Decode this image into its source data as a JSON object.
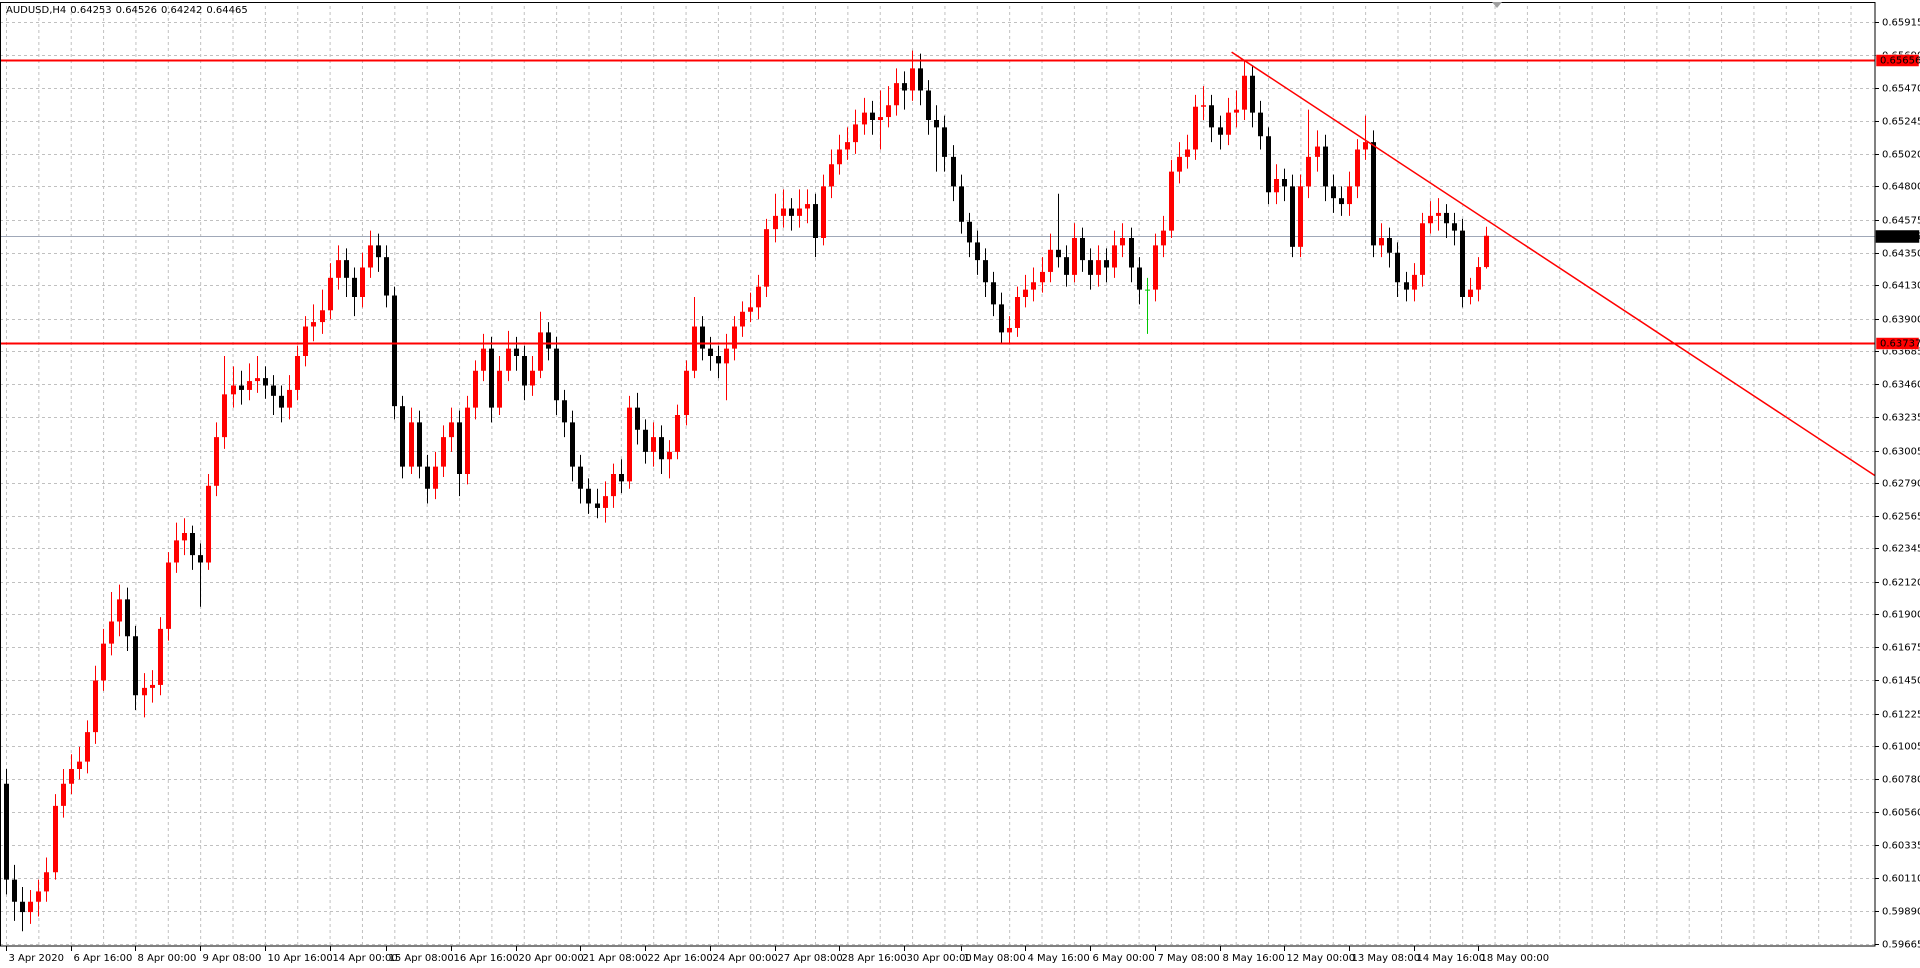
{
  "chart_data": {
    "type": "candlestick",
    "symbol": "AUDUSD,H4",
    "up_color": "#ff0000",
    "down_color": "#000000",
    "doji_color": "#00c800",
    "grid": true,
    "ylim": [
      0.5965,
      0.6605
    ],
    "yticks": [
      0.65915,
      {
        "value": 0.6569,
        "label": "0.65690"
      },
      {
        "value": 0.6547,
        "label": "0.65470"
      },
      0.65245,
      {
        "value": 0.6502,
        "label": "0.65020"
      },
      {
        "value": 0.648,
        "label": "0.64800"
      },
      0.64575,
      {
        "value": 0.6435,
        "label": "0.64350"
      },
      {
        "value": 0.6413,
        "label": "0.64130"
      },
      {
        "value": 0.639,
        "label": "0.63900"
      },
      0.63685,
      {
        "value": 0.6346,
        "label": "0.63460"
      },
      0.63235,
      0.63005,
      {
        "value": 0.6279,
        "label": "0.62790"
      },
      0.62565,
      0.62345,
      {
        "value": 0.6212,
        "label": "0.62120"
      },
      {
        "value": 0.619,
        "label": "0.61900"
      },
      0.61675,
      {
        "value": 0.6145,
        "label": "0.61450"
      },
      0.61225,
      0.61005,
      {
        "value": 0.6078,
        "label": "0.60780"
      },
      {
        "value": 0.6056,
        "label": "0.60560"
      },
      0.60335,
      {
        "value": 0.6011,
        "label": "0.60110"
      },
      {
        "value": 0.5989,
        "label": "0.59890"
      },
      0.59665
    ],
    "levels": [
      {
        "value": 0.65656,
        "color": "#ff0000"
      },
      {
        "value": 0.63737,
        "color": "#ff0000"
      }
    ],
    "current_price_color": "#a0a8b8",
    "trendline": {
      "x": [
        151.5,
        231
      ],
      "y": [
        0.6571,
        0.6284
      ],
      "color": "#ff0000"
    },
    "categories": [
      "3 Apr 2020",
      null,
      null,
      null,
      null,
      null,
      null,
      null,
      "6 Apr 16:00",
      null,
      null,
      null,
      null,
      null,
      null,
      null,
      "8 Apr 00:00",
      null,
      null,
      null,
      null,
      null,
      null,
      null,
      "9 Apr 08:00",
      null,
      null,
      null,
      null,
      null,
      null,
      null,
      "10 Apr 16:00",
      null,
      null,
      null,
      null,
      null,
      null,
      null,
      "14 Apr 00:00",
      null,
      null,
      null,
      null,
      null,
      null,
      "15 Apr 08:00",
      null,
      null,
      null,
      null,
      null,
      null,
      null,
      "16 Apr 16:00",
      null,
      null,
      null,
      null,
      null,
      null,
      null,
      "20 Apr 00:00",
      null,
      null,
      null,
      null,
      null,
      null,
      null,
      "21 Apr 08:00",
      null,
      null,
      null,
      null,
      null,
      null,
      null,
      "22 Apr 16:00",
      null,
      null,
      null,
      null,
      null,
      null,
      null,
      "24 Apr 00:00",
      null,
      null,
      null,
      null,
      null,
      null,
      null,
      "27 Apr 08:00",
      null,
      null,
      null,
      null,
      null,
      null,
      null,
      "28 Apr 16:00",
      null,
      null,
      null,
      null,
      null,
      null,
      null,
      "30 Apr 00:00",
      null,
      null,
      null,
      null,
      null,
      null,
      "1 May 08:00",
      null,
      null,
      null,
      null,
      null,
      null,
      null,
      "4 May 16:00",
      null,
      null,
      null,
      null,
      null,
      null,
      null,
      "6 May 00:00",
      null,
      null,
      null,
      null,
      null,
      null,
      null,
      "7 May 08:00",
      null,
      null,
      null,
      null,
      null,
      null,
      null,
      "8 May 16:00",
      null,
      null,
      null,
      null,
      null,
      null,
      null,
      "12 May 00:00",
      null,
      null,
      null,
      null,
      null,
      null,
      null,
      "13 May 08:00",
      null,
      null,
      null,
      null,
      null,
      null,
      null,
      "14 May 16:00",
      null,
      null,
      null,
      null,
      null,
      null,
      null,
      "18 May 00:00",
      null
    ],
    "open": [
      0.6075,
      0.601,
      0.5995,
      0.5988,
      0.5995,
      0.6002,
      0.6015,
      0.606,
      0.6075,
      0.6085,
      0.609,
      0.611,
      0.6145,
      0.617,
      0.6185,
      0.62,
      0.6175,
      0.6135,
      0.614,
      0.6142,
      0.618,
      0.6225,
      0.624,
      0.6245,
      0.623,
      0.6225,
      0.6277,
      0.631,
      0.6339,
      0.6345,
      0.6342,
      0.6348,
      0.635,
      0.6345,
      0.6338,
      0.633,
      0.6342,
      0.6365,
      0.6385,
      0.6388,
      0.6396,
      0.6418,
      0.643,
      0.6418,
      0.6405,
      0.6425,
      0.644,
      0.6432,
      0.6406,
      0.6331,
      0.629,
      0.632,
      0.629,
      0.6275,
      0.629,
      0.631,
      0.632,
      0.6285,
      0.633,
      0.6355,
      0.637,
      0.633,
      0.6355,
      0.637,
      0.6365,
      0.6345,
      0.6355,
      0.6381,
      0.637,
      0.6335,
      0.632,
      0.629,
      0.6275,
      0.6265,
      0.6262,
      0.627,
      0.6285,
      0.628,
      0.633,
      0.6315,
      0.63,
      0.631,
      0.6295,
      0.63,
      0.6325,
      0.6355,
      0.6385,
      0.637,
      0.6365,
      0.636,
      0.637,
      0.6385,
      0.6395,
      0.6398,
      0.6412,
      0.6451,
      0.646,
      0.6465,
      0.646,
      0.6465,
      0.6468,
      0.6445,
      0.648,
      0.6495,
      0.6505,
      0.651,
      0.6522,
      0.653,
      0.6525,
      0.6527,
      0.6535,
      0.655,
      0.6545,
      0.656,
      0.6545,
      0.6525,
      0.652,
      0.65,
      0.648,
      0.6456,
      0.6442,
      0.643,
      0.6415,
      0.64,
      0.6381,
      0.6384,
      0.6405,
      0.641,
      0.6415,
      0.6422,
      0.6437,
      0.6432,
      0.642,
      0.6445,
      0.643,
      0.642,
      0.643,
      0.6425,
      0.644,
      0.6445,
      0.6425,
      0.641,
      0.641,
      0.644,
      0.645,
      0.649,
      0.65,
      0.6505,
      0.6534,
      0.6535,
      0.652,
      0.6515,
      0.653,
      0.6532,
      0.6555,
      0.653,
      0.6514,
      0.6476,
      0.6485,
      0.648,
      0.6439,
      0.648,
      0.65,
      0.6507,
      0.648,
      0.6472,
      0.6468,
      0.648,
      0.6505,
      0.651,
      0.644,
      0.6445,
      0.6435,
      0.6415,
      0.641,
      0.642,
      0.6455,
      0.646,
      0.6462,
      0.6455,
      0.645,
      0.6405,
      0.641,
      0.64253
    ],
    "high": [
      0.6085,
      0.602,
      0.6005,
      0.6003,
      0.601,
      0.6025,
      0.6068,
      0.6085,
      0.6095,
      0.61,
      0.6118,
      0.6155,
      0.618,
      0.6205,
      0.621,
      0.6208,
      0.6182,
      0.615,
      0.6152,
      0.6188,
      0.6232,
      0.6252,
      0.6255,
      0.625,
      0.6238,
      0.6285,
      0.632,
      0.6365,
      0.6358,
      0.6355,
      0.636,
      0.6365,
      0.6358,
      0.6352,
      0.6345,
      0.6352,
      0.6372,
      0.6392,
      0.64,
      0.641,
      0.6428,
      0.644,
      0.6438,
      0.6425,
      0.6435,
      0.645,
      0.6448,
      0.644,
      0.6412,
      0.6338,
      0.633,
      0.6328,
      0.6298,
      0.63,
      0.6318,
      0.633,
      0.6328,
      0.6338,
      0.6362,
      0.638,
      0.6378,
      0.6365,
      0.6382,
      0.6378,
      0.6372,
      0.6365,
      0.6395,
      0.6388,
      0.6378,
      0.6342,
      0.6328,
      0.6298,
      0.6282,
      0.6275,
      0.628,
      0.6292,
      0.6295,
      0.6338,
      0.634,
      0.6322,
      0.632,
      0.6318,
      0.6308,
      0.6332,
      0.6362,
      0.6405,
      0.6392,
      0.6378,
      0.6372,
      0.638,
      0.6392,
      0.6402,
      0.6408,
      0.642,
      0.6458,
      0.6475,
      0.6478,
      0.6472,
      0.6478,
      0.6478,
      0.6475,
      0.6488,
      0.6505,
      0.6515,
      0.652,
      0.6532,
      0.654,
      0.6538,
      0.6545,
      0.6548,
      0.656,
      0.6558,
      0.6572,
      0.657,
      0.6552,
      0.6535,
      0.6528,
      0.6508,
      0.6488,
      0.6462,
      0.645,
      0.6438,
      0.6422,
      0.6408,
      0.6392,
      0.6412,
      0.642,
      0.6425,
      0.6432,
      0.6448,
      0.6475,
      0.644,
      0.6455,
      0.6452,
      0.6438,
      0.644,
      0.6438,
      0.645,
      0.6455,
      0.6452,
      0.6432,
      0.6418,
      0.6448,
      0.646,
      0.6498,
      0.651,
      0.6515,
      0.6542,
      0.6548,
      0.6542,
      0.6528,
      0.654,
      0.6545,
      0.6565,
      0.6562,
      0.6538,
      0.652,
      0.6495,
      0.6492,
      0.6488,
      0.6488,
      0.6532,
      0.6518,
      0.6515,
      0.6488,
      0.648,
      0.649,
      0.6512,
      0.6528,
      0.6518,
      0.6455,
      0.6452,
      0.6442,
      0.6422,
      0.6428,
      0.6462,
      0.647,
      0.6472,
      0.6468,
      0.6462,
      0.6458,
      0.6418,
      0.6432,
      0.64526
    ],
    "low": [
      0.6,
      0.5982,
      0.5975,
      0.598,
      0.5985,
      0.5995,
      0.601,
      0.6052,
      0.6068,
      0.6078,
      0.6082,
      0.6102,
      0.6138,
      0.6162,
      0.6175,
      0.6165,
      0.6125,
      0.612,
      0.613,
      0.6135,
      0.6172,
      0.6218,
      0.623,
      0.622,
      0.6195,
      0.622,
      0.627,
      0.6302,
      0.633,
      0.6332,
      0.6335,
      0.634,
      0.6336,
      0.6325,
      0.632,
      0.6322,
      0.6335,
      0.6358,
      0.6375,
      0.638,
      0.639,
      0.641,
      0.6405,
      0.6392,
      0.6398,
      0.6418,
      0.6422,
      0.6398,
      0.6322,
      0.6282,
      0.6285,
      0.6282,
      0.6265,
      0.6268,
      0.6283,
      0.63,
      0.627,
      0.6278,
      0.6322,
      0.6348,
      0.632,
      0.6325,
      0.6348,
      0.6355,
      0.6335,
      0.6338,
      0.635,
      0.6362,
      0.6325,
      0.631,
      0.628,
      0.6265,
      0.6258,
      0.6255,
      0.6252,
      0.6262,
      0.6272,
      0.6275,
      0.6305,
      0.6292,
      0.629,
      0.6285,
      0.6282,
      0.6295,
      0.6318,
      0.635,
      0.6362,
      0.6355,
      0.635,
      0.6335,
      0.6362,
      0.6378,
      0.6388,
      0.639,
      0.6405,
      0.6442,
      0.6452,
      0.645,
      0.6452,
      0.6455,
      0.6432,
      0.644,
      0.6472,
      0.6488,
      0.6498,
      0.6502,
      0.6515,
      0.6515,
      0.6505,
      0.652,
      0.6528,
      0.6532,
      0.6538,
      0.6535,
      0.6515,
      0.649,
      0.649,
      0.647,
      0.6448,
      0.6432,
      0.642,
      0.6405,
      0.6392,
      0.6373,
      0.6374,
      0.6378,
      0.6398,
      0.6402,
      0.6408,
      0.6415,
      0.6425,
      0.6412,
      0.6415,
      0.6422,
      0.641,
      0.6412,
      0.6415,
      0.6418,
      0.6432,
      0.6415,
      0.64,
      0.638,
      0.6402,
      0.6432,
      0.6445,
      0.6482,
      0.6492,
      0.6498,
      0.6525,
      0.651,
      0.6505,
      0.6508,
      0.652,
      0.6525,
      0.652,
      0.6505,
      0.6468,
      0.6468,
      0.647,
      0.6432,
      0.6432,
      0.6472,
      0.649,
      0.647,
      0.6462,
      0.646,
      0.646,
      0.6472,
      0.6498,
      0.6432,
      0.6432,
      0.6425,
      0.6405,
      0.6402,
      0.6402,
      0.6412,
      0.6448,
      0.645,
      0.6445,
      0.644,
      0.6398,
      0.64,
      0.6402,
      0.64242
    ],
    "close": [
      0.601,
      0.5995,
      0.5988,
      0.5995,
      0.6002,
      0.6015,
      0.606,
      0.6075,
      0.6085,
      0.609,
      0.611,
      0.6145,
      0.617,
      0.6185,
      0.62,
      0.6175,
      0.6135,
      0.614,
      0.6142,
      0.618,
      0.6225,
      0.624,
      0.6245,
      0.623,
      0.6225,
      0.6277,
      0.631,
      0.6339,
      0.6345,
      0.6342,
      0.6348,
      0.635,
      0.6345,
      0.6338,
      0.633,
      0.6342,
      0.6365,
      0.6385,
      0.6388,
      0.6396,
      0.6418,
      0.643,
      0.6418,
      0.6405,
      0.6425,
      0.644,
      0.6432,
      0.6406,
      0.6331,
      0.629,
      0.632,
      0.629,
      0.6275,
      0.629,
      0.631,
      0.632,
      0.6285,
      0.633,
      0.6355,
      0.637,
      0.633,
      0.6355,
      0.637,
      0.6365,
      0.6345,
      0.6355,
      0.6381,
      0.637,
      0.6335,
      0.632,
      0.629,
      0.6275,
      0.6265,
      0.6262,
      0.627,
      0.6285,
      0.628,
      0.633,
      0.6315,
      0.63,
      0.631,
      0.6295,
      0.63,
      0.6325,
      0.6355,
      0.6385,
      0.637,
      0.6365,
      0.636,
      0.637,
      0.6385,
      0.6395,
      0.6398,
      0.6412,
      0.6451,
      0.646,
      0.6465,
      0.646,
      0.6465,
      0.6468,
      0.6445,
      0.648,
      0.6495,
      0.6505,
      0.651,
      0.6522,
      0.653,
      0.6525,
      0.6527,
      0.6535,
      0.655,
      0.6545,
      0.656,
      0.6545,
      0.6525,
      0.652,
      0.65,
      0.648,
      0.6456,
      0.6442,
      0.643,
      0.6415,
      0.64,
      0.6381,
      0.6384,
      0.6405,
      0.641,
      0.6415,
      0.6422,
      0.6437,
      0.6432,
      0.642,
      0.6445,
      0.643,
      0.642,
      0.643,
      0.6425,
      0.644,
      0.6445,
      0.6425,
      0.641,
      0.641,
      0.644,
      0.645,
      0.649,
      0.65,
      0.6505,
      0.6534,
      0.6535,
      0.652,
      0.6515,
      0.653,
      0.6532,
      0.6555,
      0.653,
      0.6514,
      0.6476,
      0.6485,
      0.648,
      0.6439,
      0.648,
      0.65,
      0.6507,
      0.648,
      0.6472,
      0.6468,
      0.648,
      0.6505,
      0.651,
      0.644,
      0.6445,
      0.6435,
      0.6415,
      0.641,
      0.642,
      0.6455,
      0.646,
      0.6462,
      0.6455,
      0.645,
      0.6405,
      0.641,
      0.64253,
      0.64465
    ]
  }
}
